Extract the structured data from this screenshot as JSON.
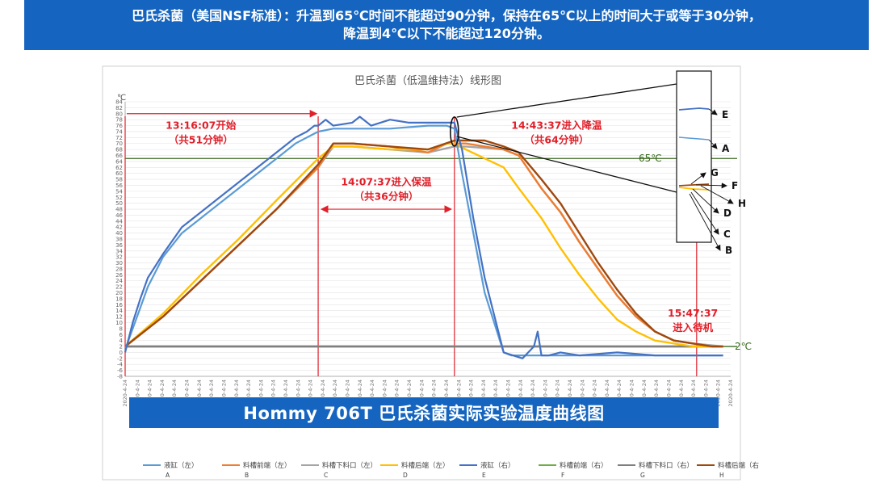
{
  "banner": {
    "line1": "巴氏杀菌（美国NSF标准）：升温到65℃时间不能超过90分钟，保持在65℃以上的时间大于或等于30分钟，",
    "line2": "降温到4℃以下不能超过120分钟。"
  },
  "colors": {
    "banner_bg": "#1565c0",
    "A": "#5b9bd5",
    "B": "#ed7d31",
    "C": "#a5a5a5",
    "D": "#ffc000",
    "E": "#4472c4",
    "F": "#70ad47",
    "G": "#7f7f7f",
    "H": "#9e480e",
    "annotation": "#e0202a",
    "threshold": "#3a6a1e"
  },
  "chart_data": {
    "type": "line",
    "title": "巴氏杀菌（低温维持法）线形图",
    "ylabel": "℃",
    "ylim": [
      -8,
      84
    ],
    "yticks": [
      -8,
      -6,
      -4,
      -2,
      0,
      2,
      4,
      6,
      8,
      10,
      12,
      14,
      16,
      18,
      20,
      22,
      24,
      26,
      28,
      30,
      32,
      34,
      36,
      38,
      40,
      42,
      44,
      46,
      48,
      50,
      52,
      54,
      56,
      58,
      60,
      62,
      64,
      66,
      68,
      70,
      72,
      74,
      76,
      78,
      80,
      82,
      84
    ],
    "x_tick_label": "2020-4-24",
    "x_tick_count": 50,
    "xlim": [
      0,
      160
    ],
    "thresholds": [
      {
        "value": 65,
        "label": "65℃"
      },
      {
        "value": 2,
        "label": "2℃"
      }
    ],
    "markers": [
      {
        "x": 0,
        "time": "13:16:07"
      },
      {
        "x": 51,
        "time": "14:07:37"
      },
      {
        "x": 87,
        "time": "14:43:37"
      },
      {
        "x": 151,
        "time": "15:47:37"
      }
    ],
    "annotations": [
      {
        "text": "13:16:07开始",
        "sub": "（共51分钟）"
      },
      {
        "text": "14:07:37进入保温",
        "sub": "（共36分钟）"
      },
      {
        "text": "14:43:37进入降温",
        "sub": "（共64分钟）"
      },
      {
        "text": "15:47:37",
        "sub": "进入待机"
      }
    ],
    "inset_labels": [
      "E",
      "A",
      "G",
      "F",
      "H",
      "D",
      "C",
      "B"
    ],
    "series": [
      {
        "name": "液缸（左）",
        "code": "A",
        "x": [
          0,
          2,
          4,
          6,
          8,
          10,
          15,
          20,
          30,
          40,
          45,
          48,
          51,
          55,
          60,
          70,
          80,
          85,
          87,
          89,
          95,
          100,
          102,
          110,
          115,
          120,
          125,
          130,
          135,
          140,
          150,
          158
        ],
        "y": [
          1,
          8,
          15,
          22,
          27,
          32,
          40,
          45,
          55,
          65,
          70,
          72,
          74,
          75,
          75,
          75,
          76,
          76,
          75,
          60,
          20,
          0,
          -1,
          -1,
          -1,
          -1,
          -1,
          -1,
          -1,
          -1,
          -1,
          -1
        ]
      },
      {
        "name": "料槽前端（左）",
        "code": "B",
        "x": [
          0,
          10,
          20,
          30,
          40,
          51,
          55,
          60,
          70,
          80,
          85,
          87,
          90,
          95,
          100,
          104,
          110,
          115,
          120,
          125,
          130,
          135,
          140,
          145,
          150,
          155,
          158
        ],
        "y": [
          2,
          12,
          24,
          36,
          48,
          62,
          70,
          70,
          69,
          67,
          70,
          70,
          70,
          69,
          68,
          66,
          55,
          47,
          37,
          28,
          19,
          12,
          7,
          4,
          3,
          2,
          2
        ]
      },
      {
        "name": "料槽下料口（左）",
        "code": "C",
        "x": [
          0,
          10,
          20,
          30,
          40,
          51,
          55,
          60,
          70,
          80,
          87,
          90,
          100,
          104,
          110,
          115,
          120,
          125,
          130,
          135,
          140,
          145,
          150,
          158
        ],
        "y": [
          2,
          12,
          24,
          36,
          48,
          62,
          69,
          69,
          68,
          67,
          69,
          69,
          68,
          66,
          55,
          47,
          37,
          28,
          19,
          12,
          7,
          4,
          3,
          2
        ]
      },
      {
        "name": "料槽后端（左）",
        "code": "D",
        "x": [
          0,
          10,
          20,
          30,
          40,
          51,
          55,
          60,
          70,
          80,
          85,
          87,
          90,
          95,
          100,
          104,
          110,
          115,
          120,
          125,
          130,
          135,
          140,
          145,
          150,
          155,
          158
        ],
        "y": [
          2,
          13,
          26,
          38,
          51,
          65,
          69,
          69,
          68,
          68,
          70,
          70,
          68,
          65,
          62,
          55,
          45,
          35,
          26,
          18,
          11,
          7,
          4,
          3,
          2,
          2,
          2
        ]
      },
      {
        "name": "液缸（右）",
        "code": "E",
        "x": [
          0,
          2,
          4,
          6,
          8,
          10,
          15,
          20,
          30,
          40,
          45,
          48,
          50,
          51,
          53,
          55,
          60,
          62,
          65,
          70,
          75,
          80,
          85,
          87,
          89,
          92,
          95,
          100,
          105,
          108,
          109,
          110,
          112,
          115,
          120,
          130,
          140,
          150,
          158
        ],
        "y": [
          0,
          10,
          18,
          25,
          29,
          33,
          42,
          47,
          57,
          67,
          72,
          74,
          76,
          76,
          78,
          76,
          77,
          79,
          76,
          78,
          77,
          77,
          77,
          77,
          68,
          45,
          25,
          0,
          -2,
          2,
          7,
          -1,
          -1,
          0,
          -1,
          0,
          -1,
          -1,
          -1
        ]
      },
      {
        "name": "料槽前端（右）",
        "code": "F",
        "x": [
          0,
          158
        ],
        "y": [
          2,
          2
        ]
      },
      {
        "name": "料槽下料口（右）",
        "code": "G",
        "x": [
          0,
          158
        ],
        "y": [
          2,
          2
        ]
      },
      {
        "name": "料槽后端（右）",
        "code": "H",
        "x": [
          0,
          10,
          20,
          30,
          40,
          51,
          55,
          60,
          70,
          80,
          87,
          90,
          95,
          100,
          104,
          110,
          115,
          120,
          125,
          130,
          135,
          140,
          145,
          150,
          155,
          158
        ],
        "y": [
          2,
          12,
          24,
          36,
          48,
          63,
          70,
          70,
          69,
          68,
          71,
          71,
          71,
          69,
          67,
          58,
          50,
          40,
          30,
          21,
          13,
          7,
          4,
          3,
          2,
          2
        ]
      }
    ],
    "legend": [
      {
        "label": "液缸（左）",
        "code": "A"
      },
      {
        "label": "料槽前端（左）",
        "code": "B"
      },
      {
        "label": "料槽下料口（左）",
        "code": "C"
      },
      {
        "label": "料槽后端（左）",
        "code": "D"
      },
      {
        "label": "液缸（右）",
        "code": "E"
      },
      {
        "label": "料槽前端（右）",
        "code": "F"
      },
      {
        "label": "料槽下料口（右）",
        "code": "G"
      },
      {
        "label": "料槽后端（右）",
        "code": "H"
      }
    ]
  },
  "bottom_title": "Hommy  706T  巴氏杀菌实际实验温度曲线图"
}
